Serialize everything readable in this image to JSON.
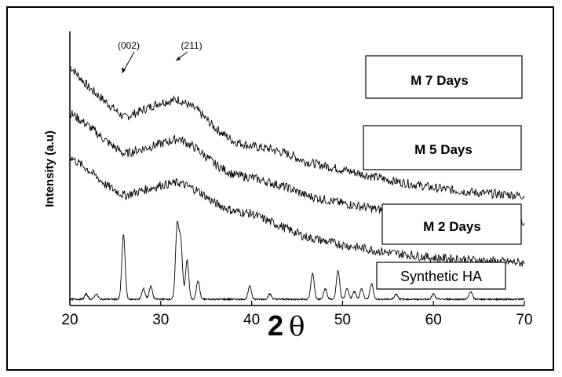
{
  "chart_data": {
    "type": "line",
    "xlabel_main": "2",
    "xlabel_symbol": "θ",
    "ylabel": "Intensity (a.u)",
    "xlim": [
      20,
      70
    ],
    "x_ticks": [
      "20",
      "30",
      "40",
      "50",
      "60",
      "70"
    ],
    "grid": false,
    "annotations": [
      "(002)",
      "(211)"
    ],
    "series": [
      {
        "name": "M 7 Days",
        "x": [
          20,
          22,
          24,
          26,
          28,
          30,
          32,
          34,
          36,
          38,
          40,
          42,
          44,
          46,
          50,
          55,
          60,
          65,
          70
        ],
        "values": [
          0.9,
          0.82,
          0.76,
          0.7,
          0.73,
          0.76,
          0.77,
          0.73,
          0.66,
          0.61,
          0.59,
          0.58,
          0.56,
          0.53,
          0.5,
          0.46,
          0.43,
          0.41,
          0.4
        ]
      },
      {
        "name": "M 5 Days",
        "x": [
          20,
          22,
          24,
          26,
          28,
          30,
          32,
          34,
          36,
          38,
          40,
          42,
          44,
          46,
          50,
          55,
          60,
          65,
          70
        ],
        "values": [
          0.72,
          0.67,
          0.61,
          0.56,
          0.58,
          0.6,
          0.62,
          0.58,
          0.52,
          0.48,
          0.47,
          0.45,
          0.43,
          0.4,
          0.37,
          0.34,
          0.32,
          0.3,
          0.29
        ]
      },
      {
        "name": "M 2 Days",
        "x": [
          20,
          22,
          24,
          26,
          28,
          30,
          32,
          34,
          36,
          38,
          40,
          42,
          44,
          46,
          50,
          55,
          60,
          65,
          70
        ],
        "values": [
          0.55,
          0.5,
          0.44,
          0.4,
          0.42,
          0.44,
          0.45,
          0.42,
          0.37,
          0.34,
          0.33,
          0.3,
          0.27,
          0.24,
          0.21,
          0.18,
          0.16,
          0.15,
          0.14
        ]
      },
      {
        "name": "Synthetic HA",
        "peaks": [
          {
            "x": 21.8,
            "h": 0.02
          },
          {
            "x": 22.9,
            "h": 0.02
          },
          {
            "x": 25.9,
            "h": 0.25
          },
          {
            "x": 28.1,
            "h": 0.04
          },
          {
            "x": 28.9,
            "h": 0.05
          },
          {
            "x": 31.8,
            "h": 0.28
          },
          {
            "x": 32.2,
            "h": 0.22
          },
          {
            "x": 32.9,
            "h": 0.15
          },
          {
            "x": 34.1,
            "h": 0.07
          },
          {
            "x": 39.8,
            "h": 0.05
          },
          {
            "x": 42.0,
            "h": 0.02
          },
          {
            "x": 46.7,
            "h": 0.1
          },
          {
            "x": 48.1,
            "h": 0.04
          },
          {
            "x": 49.5,
            "h": 0.11
          },
          {
            "x": 50.5,
            "h": 0.04
          },
          {
            "x": 51.3,
            "h": 0.03
          },
          {
            "x": 52.1,
            "h": 0.04
          },
          {
            "x": 53.2,
            "h": 0.06
          },
          {
            "x": 55.9,
            "h": 0.02
          },
          {
            "x": 60.0,
            "h": 0.02
          },
          {
            "x": 64.1,
            "h": 0.03
          }
        ],
        "baseline": 0.0
      }
    ]
  }
}
